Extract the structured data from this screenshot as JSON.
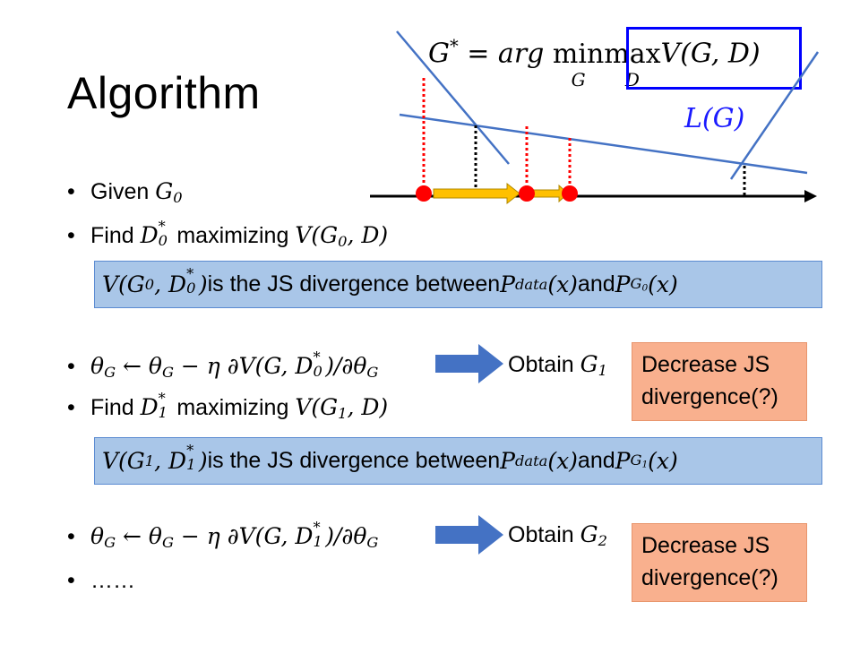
{
  "title": "Algorithm",
  "formula": {
    "lhs": "G",
    "star": "*",
    "eq": " = arg ",
    "min": "min",
    "min_sub": "G",
    "max": "max",
    "max_sub": "D",
    "rest": "V(G, D)"
  },
  "lg_label": "L(G)",
  "bullets": {
    "b1": {
      "text": "Given ",
      "var": "G",
      "sub": "0"
    },
    "b2": {
      "text": "Find ",
      "var": "D",
      "sup": "*",
      "sub": "0",
      "mid": " maximizing ",
      "expr": "V(G",
      "expr_sub": "0",
      "expr_end": ", D)"
    },
    "b3": {
      "theta": "θ",
      "sub": "G",
      "arrow": " ← ",
      "minus": " − η ∂V(G, D",
      "dsub": "0",
      "dsup": "*",
      "end": ")/∂θ"
    },
    "b4": {
      "text": "Find ",
      "var": "D",
      "sup": "*",
      "sub": "1",
      "mid": " maximizing ",
      "expr": "V(G",
      "expr_sub": "1",
      "expr_end": ", D)"
    },
    "b5": {
      "theta": "θ",
      "sub": "G",
      "arrow": " ← ",
      "minus": " − η ∂V(G, D",
      "dsub": "1",
      "dsup": "*",
      "end": ")/∂θ"
    },
    "b6": {
      "text": "……"
    }
  },
  "boxes": {
    "box1": {
      "v": "V(G",
      "gsub": "0",
      "mid": ", D",
      "dsub": "0",
      "dsup": "*",
      "close": ")",
      "text": " is the JS divergence between ",
      "p": "P",
      "psub": "data",
      "px": "(x)",
      "and": " and ",
      "p2": "P",
      "p2sub": "G",
      "p2subsub": "0",
      "p2x": "(x)"
    },
    "box2": {
      "v": "V(G",
      "gsub": "1",
      "mid": ", D",
      "dsub": "1",
      "dsup": "*",
      "close": ")",
      "text": " is the JS divergence between ",
      "p": "P",
      "psub": "data",
      "px": "(x)",
      "and": " and ",
      "p2": "P",
      "p2sub": "G",
      "p2subsub": "1",
      "p2x": "(x)"
    }
  },
  "obtain": {
    "o1": {
      "text": "Obtain ",
      "var": "G",
      "sub": "1"
    },
    "o2": {
      "text": "Obtain ",
      "var": "G",
      "sub": "2"
    }
  },
  "decrease": {
    "d1": {
      "line1": "Decrease JS",
      "line2": "divergence(?)"
    },
    "d2": {
      "line1": "Decrease JS",
      "line2": "divergence(?)"
    }
  },
  "colors": {
    "blue_line": "#4472c4",
    "red": "#ff0000",
    "yellow": "#ffc000",
    "box_blue": "#a9c6e8",
    "box_orange": "#f9b08e",
    "frame_blue": "#0000ff",
    "lg_blue": "#1a1aff"
  }
}
